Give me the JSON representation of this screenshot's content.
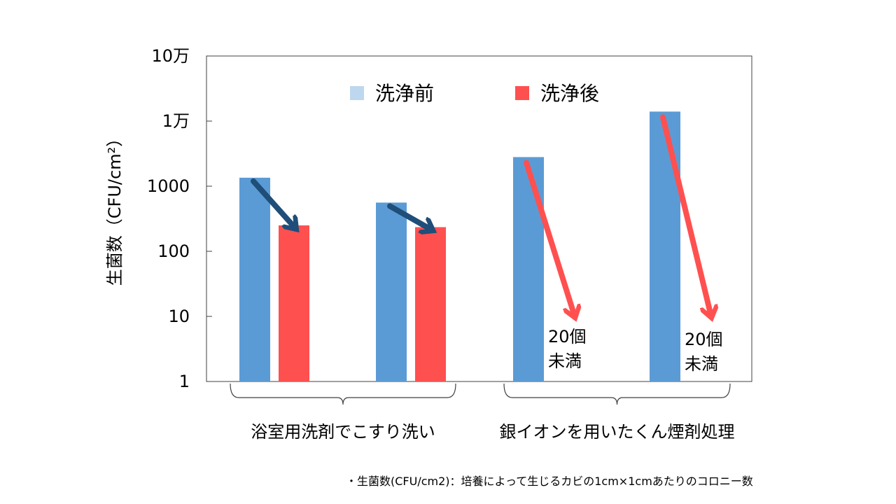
{
  "chart_data": {
    "type": "bar",
    "scale": "log",
    "ylabel": "生菌数（CFU/cm²）",
    "yticks": [
      {
        "value": 1,
        "label": "1"
      },
      {
        "value": 10,
        "label": "10"
      },
      {
        "value": 100,
        "label": "100"
      },
      {
        "value": 1000,
        "label": "1000"
      },
      {
        "value": 10000,
        "label": "1万"
      },
      {
        "value": 100000,
        "label": "10万"
      }
    ],
    "ylim": [
      1,
      100000
    ],
    "legend": [
      {
        "name": "洗浄前",
        "color": "#bdd7ee"
      },
      {
        "name": "洗浄後",
        "color": "#ff5050"
      }
    ],
    "legend_position": "top-center",
    "bar_colors": {
      "before": "#5b9bd5",
      "after": "#ff5050"
    },
    "groups": [
      {
        "label": "浴室用洗剤でこすり洗い",
        "pairs": [
          0,
          1
        ]
      },
      {
        "label": "銀イオンを用いたくん煙剤処理",
        "pairs": [
          2,
          3
        ]
      }
    ],
    "series": [
      {
        "name": "洗浄前",
        "values": [
          1350,
          560,
          2800,
          14000
        ]
      },
      {
        "name": "洗浄後",
        "values": [
          250,
          235,
          null,
          null
        ]
      }
    ],
    "annotations": [
      {
        "pair": 2,
        "text_lines": [
          "20個",
          "未満"
        ]
      },
      {
        "pair": 3,
        "text_lines": [
          "20個",
          "未満"
        ]
      }
    ],
    "grid": false
  },
  "footnote": "・生菌数(CFU/cm2)：培養によって生じるカビの1cm×1cmあたりのコロニー数"
}
